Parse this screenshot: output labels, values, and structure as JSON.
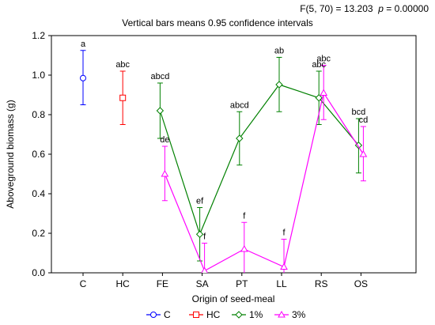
{
  "header": {
    "stat_line": "F(5, 70) = 13.203",
    "p_label": "p",
    "p_value": "= 0.00000",
    "subtitle": "Vertical bars means 0.95 confidence intervals"
  },
  "chart_data": {
    "type": "line",
    "title": "Vertical bars means 0.95 confidence intervals",
    "xlabel": "Origin of seed-meal",
    "ylabel": "Aboveground biomass (g)",
    "categories": [
      "C",
      "HC",
      "FE",
      "SA",
      "PT",
      "LL",
      "RS",
      "OS"
    ],
    "ylim": [
      0,
      1.2
    ],
    "yticks": [
      "0.0",
      "0.2",
      "0.4",
      "0.6",
      "0.8",
      "1.0",
      "1.2"
    ],
    "grid": false,
    "legend_position": "bottom",
    "series": [
      {
        "name": "C",
        "color": "#0000ff",
        "marker": "circle",
        "points": [
          {
            "x": "C",
            "y": 0.985,
            "lo": 0.85,
            "hi": 1.125,
            "label": "a"
          }
        ]
      },
      {
        "name": "HC",
        "color": "#ff0000",
        "marker": "square",
        "points": [
          {
            "x": "HC",
            "y": 0.885,
            "lo": 0.75,
            "hi": 1.02,
            "label": "abc"
          }
        ]
      },
      {
        "name": "1%",
        "color": "#008000",
        "marker": "diamond",
        "points": [
          {
            "x": "FE",
            "y": 0.82,
            "lo": 0.68,
            "hi": 0.96,
            "label": "abcd"
          },
          {
            "x": "SA",
            "y": 0.195,
            "lo": 0.06,
            "hi": 0.33,
            "label": "ef"
          },
          {
            "x": "PT",
            "y": 0.68,
            "lo": 0.545,
            "hi": 0.815,
            "label": "abcd"
          },
          {
            "x": "LL",
            "y": 0.952,
            "lo": 0.815,
            "hi": 1.09,
            "label": "ab"
          },
          {
            "x": "RS",
            "y": 0.885,
            "lo": 0.75,
            "hi": 1.02,
            "label": "abc"
          },
          {
            "x": "OS",
            "y": 0.645,
            "lo": 0.505,
            "hi": 0.78,
            "label": "bcd"
          }
        ]
      },
      {
        "name": "3%",
        "color": "#ff00ff",
        "marker": "triangle",
        "points": [
          {
            "x": "FE",
            "y": 0.5,
            "lo": 0.365,
            "hi": 0.64,
            "label": "de"
          },
          {
            "x": "SA",
            "y": 0.01,
            "lo": -0.125,
            "hi": 0.15,
            "label": "f"
          },
          {
            "x": "PT",
            "y": 0.12,
            "lo": -0.02,
            "hi": 0.255,
            "label": "f"
          },
          {
            "x": "LL",
            "y": 0.03,
            "lo": -0.105,
            "hi": 0.17,
            "label": "f"
          },
          {
            "x": "RS",
            "y": 0.91,
            "lo": 0.775,
            "hi": 1.05,
            "label": "abc"
          },
          {
            "x": "OS",
            "y": 0.6,
            "lo": 0.465,
            "hi": 0.74,
            "label": "cd"
          }
        ]
      }
    ]
  }
}
